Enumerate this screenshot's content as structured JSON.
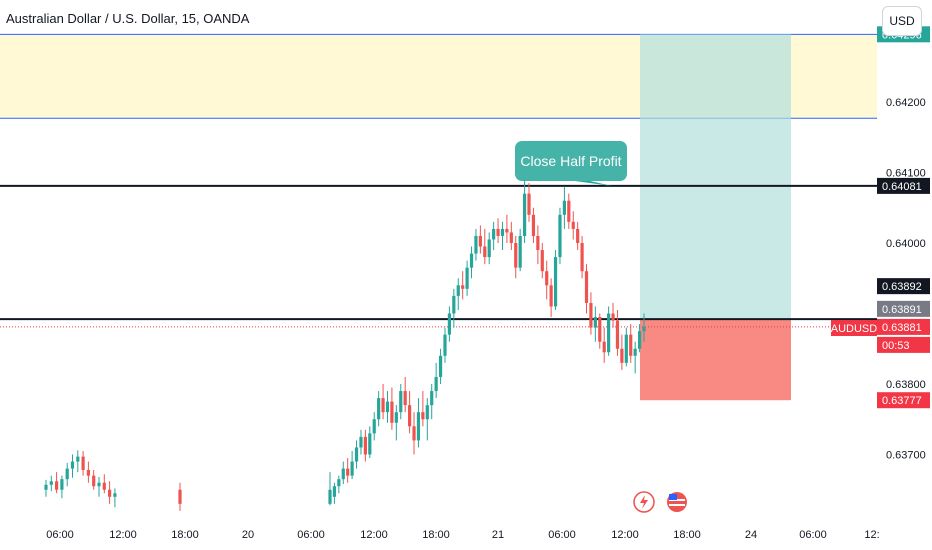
{
  "header": {
    "title": "Australian Dollar / U.S. Dollar, 15, OANDA",
    "currency_button": "USD"
  },
  "colors": {
    "up": "#26a69a",
    "down": "#ef5350",
    "yellow_zone": "#fff9d6",
    "target_zone": "#b2dfdb",
    "stop_zone": "#f77c76",
    "axis_text": "#131722"
  },
  "chart_data": {
    "type": "candlestick",
    "symbol": "AUDUSD",
    "interval": "15",
    "y_ticks": [
      "0.64200",
      "0.64100",
      "0.64000",
      "0.63800",
      "0.63700"
    ],
    "x_ticks": [
      "06:00",
      "12:00",
      "18:00",
      "20",
      "06:00",
      "12:00",
      "18:00",
      "21",
      "06:00",
      "12:00",
      "18:00",
      "24",
      "06:00",
      "12:"
    ],
    "price_labels": [
      {
        "text": "0.64296",
        "value": 0.64296,
        "bg": "#26a69a",
        "fg": "#ffffff"
      },
      {
        "text": "0.64081",
        "value": 0.64081,
        "bg": "#131722",
        "fg": "#ffffff"
      },
      {
        "text": "0.63892",
        "value": 0.63892,
        "bg": "#131722",
        "fg": "#ffffff"
      },
      {
        "text": "0.63891",
        "value": 0.63891,
        "bg": "#787b86",
        "fg": "#ffffff"
      },
      {
        "text": "0.63881",
        "value": 0.63881,
        "bg": "#f23645",
        "fg": "#ffffff"
      },
      {
        "text": "00:53",
        "value": 0.63861,
        "bg": "#f23645",
        "fg": "#ffffff"
      },
      {
        "text": "0.63777",
        "value": 0.63777,
        "bg": "#f23645",
        "fg": "#ffffff"
      }
    ],
    "symbol_tag": "AUDUSD",
    "zones": {
      "yellow": {
        "top": 0.64296,
        "bottom": 0.64177
      },
      "target": {
        "top": 0.64296,
        "bottom": 0.63892
      },
      "stop": {
        "top": 0.63892,
        "bottom": 0.63777
      }
    },
    "horizontal_lines": [
      0.64081,
      0.63892
    ],
    "callout": "Close Half Profit",
    "candles": [
      [
        0.6365,
        0.63664,
        0.6364,
        0.63657
      ],
      [
        0.63657,
        0.6367,
        0.63648,
        0.63662
      ],
      [
        0.63662,
        0.63675,
        0.63645,
        0.6365
      ],
      [
        0.6365,
        0.6367,
        0.63638,
        0.63665
      ],
      [
        0.63665,
        0.63688,
        0.63655,
        0.6368
      ],
      [
        0.6368,
        0.637,
        0.63667,
        0.6369
      ],
      [
        0.6369,
        0.63706,
        0.63675,
        0.63697
      ],
      [
        0.63697,
        0.63705,
        0.6367,
        0.63678
      ],
      [
        0.63678,
        0.6369,
        0.6366,
        0.6367
      ],
      [
        0.6367,
        0.63678,
        0.6365,
        0.63655
      ],
      [
        0.63655,
        0.63668,
        0.6364,
        0.6366
      ],
      [
        0.6366,
        0.63672,
        0.63645,
        0.6365
      ],
      [
        0.6365,
        0.63662,
        0.6363,
        0.6364
      ],
      [
        0.6364,
        0.63652,
        0.63625,
        0.63645
      ],
      [
        0.6365,
        0.6366,
        0.6362,
        0.6363
      ],
      [
        0.6363,
        0.63675,
        0.63628,
        0.6365
      ],
      [
        0.6364,
        0.6366,
        0.6363,
        0.63655
      ],
      [
        0.63655,
        0.6367,
        0.63645,
        0.63665
      ],
      [
        0.63665,
        0.6369,
        0.63658,
        0.6368
      ],
      [
        0.6368,
        0.63695,
        0.6366,
        0.6367
      ],
      [
        0.6367,
        0.63705,
        0.63665,
        0.6369
      ],
      [
        0.6369,
        0.6372,
        0.6368,
        0.6371
      ],
      [
        0.6371,
        0.63735,
        0.637,
        0.63725
      ],
      [
        0.63725,
        0.63735,
        0.6369,
        0.637
      ],
      [
        0.637,
        0.6374,
        0.63695,
        0.6373
      ],
      [
        0.6373,
        0.6376,
        0.6372,
        0.6375
      ],
      [
        0.6375,
        0.6379,
        0.6374,
        0.6378
      ],
      [
        0.6378,
        0.638,
        0.6375,
        0.6376
      ],
      [
        0.6376,
        0.6379,
        0.63745,
        0.63775
      ],
      [
        0.63775,
        0.63795,
        0.63735,
        0.63745
      ],
      [
        0.63745,
        0.6377,
        0.6372,
        0.6376
      ],
      [
        0.6376,
        0.638,
        0.6375,
        0.6379
      ],
      [
        0.6379,
        0.6381,
        0.6376,
        0.6377
      ],
      [
        0.6377,
        0.6379,
        0.6373,
        0.6374
      ],
      [
        0.6374,
        0.6376,
        0.637,
        0.6372
      ],
      [
        0.6372,
        0.6378,
        0.6371,
        0.6376
      ],
      [
        0.6376,
        0.6379,
        0.6374,
        0.6375
      ],
      [
        0.6375,
        0.6378,
        0.6372,
        0.6377
      ],
      [
        0.6377,
        0.638,
        0.6375,
        0.6379
      ],
      [
        0.6379,
        0.6383,
        0.6378,
        0.6381
      ],
      [
        0.6381,
        0.6385,
        0.638,
        0.6384
      ],
      [
        0.6384,
        0.6388,
        0.6383,
        0.6387
      ],
      [
        0.6387,
        0.6391,
        0.6386,
        0.639
      ],
      [
        0.639,
        0.63935,
        0.6388,
        0.63925
      ],
      [
        0.63925,
        0.6395,
        0.63905,
        0.6394
      ],
      [
        0.6394,
        0.6396,
        0.6392,
        0.63935
      ],
      [
        0.63935,
        0.63975,
        0.63925,
        0.63965
      ],
      [
        0.63965,
        0.63995,
        0.6395,
        0.63985
      ],
      [
        0.63985,
        0.6402,
        0.63975,
        0.6401
      ],
      [
        0.6401,
        0.64025,
        0.63985,
        0.63995
      ],
      [
        0.63995,
        0.6402,
        0.6397,
        0.6398
      ],
      [
        0.6398,
        0.64015,
        0.6397,
        0.64005
      ],
      [
        0.64005,
        0.6403,
        0.6399,
        0.6402
      ],
      [
        0.6402,
        0.64035,
        0.64,
        0.6401
      ],
      [
        0.6401,
        0.6403,
        0.6399,
        0.6402
      ],
      [
        0.6402,
        0.6404,
        0.64,
        0.64015
      ],
      [
        0.64015,
        0.6403,
        0.6399,
        0.64
      ],
      [
        0.64,
        0.6401,
        0.6395,
        0.63965
      ],
      [
        0.63965,
        0.6402,
        0.6396,
        0.6401
      ],
      [
        0.6401,
        0.6409,
        0.64,
        0.6407
      ],
      [
        0.6407,
        0.64085,
        0.6403,
        0.6404
      ],
      [
        0.6404,
        0.6405,
        0.64,
        0.6401
      ],
      [
        0.6401,
        0.64025,
        0.6397,
        0.6399
      ],
      [
        0.6399,
        0.64,
        0.6395,
        0.6396
      ],
      [
        0.6396,
        0.63975,
        0.6392,
        0.6394
      ],
      [
        0.6394,
        0.6395,
        0.63895,
        0.6391
      ],
      [
        0.6391,
        0.6399,
        0.63905,
        0.6398
      ],
      [
        0.6398,
        0.6405,
        0.6397,
        0.6404
      ],
      [
        0.6404,
        0.6408,
        0.6402,
        0.6406
      ],
      [
        0.6406,
        0.6407,
        0.6402,
        0.6403
      ],
      [
        0.6403,
        0.64045,
        0.64005,
        0.6402
      ],
      [
        0.6402,
        0.6403,
        0.6399,
        0.64
      ],
      [
        0.64,
        0.6401,
        0.6395,
        0.6396
      ],
      [
        0.6396,
        0.6397,
        0.639,
        0.63915
      ],
      [
        0.63915,
        0.6393,
        0.6387,
        0.6388
      ],
      [
        0.6388,
        0.6391,
        0.6386,
        0.63895
      ],
      [
        0.63895,
        0.639,
        0.6385,
        0.6386
      ],
      [
        0.6386,
        0.6388,
        0.6383,
        0.63845
      ],
      [
        0.63845,
        0.6391,
        0.6384,
        0.639
      ],
      [
        0.639,
        0.63915,
        0.6388,
        0.6389
      ],
      [
        0.6389,
        0.63905,
        0.6384,
        0.6385
      ],
      [
        0.6385,
        0.6387,
        0.6382,
        0.6383
      ],
      [
        0.6383,
        0.6388,
        0.63825,
        0.6387
      ],
      [
        0.6387,
        0.63885,
        0.6383,
        0.6384
      ],
      [
        0.6384,
        0.6386,
        0.63815,
        0.6385
      ],
      [
        0.6385,
        0.63885,
        0.63845,
        0.63875
      ],
      [
        0.63875,
        0.639,
        0.6386,
        0.63881
      ]
    ]
  }
}
